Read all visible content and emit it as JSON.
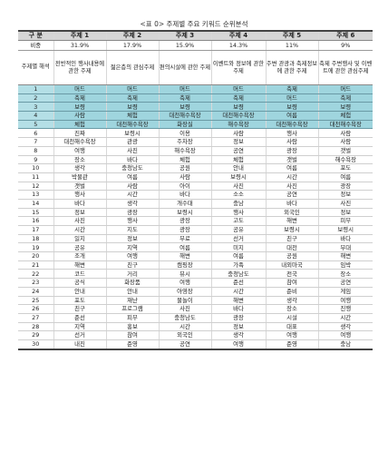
{
  "caption": "<표 0> 주제별 주요 키워드 순위분석",
  "header": {
    "label": "구 분",
    "topics": [
      "주제 1",
      "주제 2",
      "주제 3",
      "주제 4",
      "주제 5",
      "주제 6"
    ]
  },
  "ratio": {
    "label": "비중",
    "values": [
      "31.9%",
      "17.9%",
      "15.9%",
      "14.3%",
      "11%",
      "9%"
    ]
  },
  "description": {
    "label": "주제별 해석",
    "values": [
      "전반적인 행사내용에 관한 주제",
      "젊은층의 관심주제",
      "편의시설에 관한 주제",
      "이벤트와 정보에 관한 주제",
      "주변 관광과 축제정보에 관한 주제",
      "축제 주변행사 및 이벤트에 관한 관심주제"
    ]
  },
  "highlight_count": 5,
  "rows": [
    {
      "rank": "1",
      "cells": [
        "머드",
        "머드",
        "머드",
        "머드",
        "축제",
        "머드"
      ]
    },
    {
      "rank": "2",
      "cells": [
        "축제",
        "축제",
        "축제",
        "축제",
        "머드",
        "축제"
      ]
    },
    {
      "rank": "3",
      "cells": [
        "보령",
        "보령",
        "보령",
        "보령",
        "보령",
        "보령"
      ]
    },
    {
      "rank": "4",
      "cells": [
        "사람",
        "체험",
        "대천해수욕장",
        "대천해수욕장",
        "여름",
        "체험"
      ]
    },
    {
      "rank": "5",
      "cells": [
        "체험",
        "대천해수욕장",
        "화장실",
        "해수욕장",
        "대천해수욕장",
        "대천해수욕장"
      ]
    },
    {
      "rank": "6",
      "cells": [
        "진짜",
        "보령시",
        "이용",
        "사람",
        "행사",
        "사람"
      ]
    },
    {
      "rank": "7",
      "cells": [
        "대천해수욕장",
        "관광",
        "주차장",
        "정보",
        "사람",
        "사람"
      ]
    },
    {
      "rank": "8",
      "cells": [
        "여행",
        "사진",
        "해수욕장",
        "공연",
        "광장",
        "갯벌"
      ]
    },
    {
      "rank": "9",
      "cells": [
        "장소",
        "바다",
        "체험",
        "체험",
        "갯벌",
        "해수욕장"
      ]
    },
    {
      "rank": "10",
      "cells": [
        "생각",
        "충청남도",
        "공원",
        "안내",
        "여름",
        "포도"
      ]
    },
    {
      "rank": "11",
      "cells": [
        "박물관",
        "여름",
        "사람",
        "보령시",
        "시간",
        "여름"
      ]
    },
    {
      "rank": "12",
      "cells": [
        "갯벌",
        "사람",
        "아이",
        "사진",
        "사진",
        "광장"
      ]
    },
    {
      "rank": "13",
      "cells": [
        "행사",
        "시간",
        "바다",
        "소소",
        "공연",
        "정보"
      ]
    },
    {
      "rank": "14",
      "cells": [
        "바다",
        "생각",
        "개수대",
        "충남",
        "바다",
        "사진"
      ]
    },
    {
      "rank": "15",
      "cells": [
        "정보",
        "광장",
        "보령시",
        "행사",
        "외국인",
        "정보"
      ]
    },
    {
      "rank": "16",
      "cells": [
        "사진",
        "행사",
        "광장",
        "고도",
        "해변",
        "피부"
      ]
    },
    {
      "rank": "17",
      "cells": [
        "시간",
        "지도",
        "광장",
        "공유",
        "보령시",
        "보령시"
      ]
    },
    {
      "rank": "18",
      "cells": [
        "일지",
        "정보",
        "무료",
        "선거",
        "친구",
        "바다"
      ]
    },
    {
      "rank": "19",
      "cells": [
        "공유",
        "지역",
        "여름",
        "미지",
        "대천",
        "무대"
      ]
    },
    {
      "rank": "20",
      "cells": [
        "조개",
        "여행",
        "해변",
        "여름",
        "공원",
        "해변"
      ]
    },
    {
      "rank": "21",
      "cells": [
        "해변",
        "친구",
        "캠핑장",
        "가족",
        "내외마국",
        "임박"
      ]
    },
    {
      "rank": "22",
      "cells": [
        "코드",
        "거리",
        "뷰시",
        "충청남도",
        "전국",
        "장소"
      ]
    },
    {
      "rank": "23",
      "cells": [
        "공식",
        "화장품",
        "여행",
        "준선",
        "참여",
        "공연"
      ]
    },
    {
      "rank": "24",
      "cells": [
        "안내",
        "안내",
        "아영장",
        "시간",
        "준비",
        "게임"
      ]
    },
    {
      "rank": "25",
      "cells": [
        "포도",
        "재난",
        "물놀이",
        "해변",
        "생각",
        "여행"
      ]
    },
    {
      "rank": "26",
      "cells": [
        "친구",
        "프로그램",
        "사진",
        "바다",
        "장소",
        "진행"
      ]
    },
    {
      "rank": "27",
      "cells": [
        "준선",
        "피부",
        "충청남도",
        "광장",
        "시설",
        "시간"
      ]
    },
    {
      "rank": "28",
      "cells": [
        "지역",
        "홍보",
        "시간",
        "정보",
        "대표",
        "생각"
      ]
    },
    {
      "rank": "29",
      "cells": [
        "선거",
        "참여",
        "외국인",
        "생각",
        "여행",
        "여행"
      ]
    },
    {
      "rank": "30",
      "cells": [
        "내진",
        "준영",
        "공연",
        "여행",
        "준영",
        "충남"
      ]
    }
  ]
}
